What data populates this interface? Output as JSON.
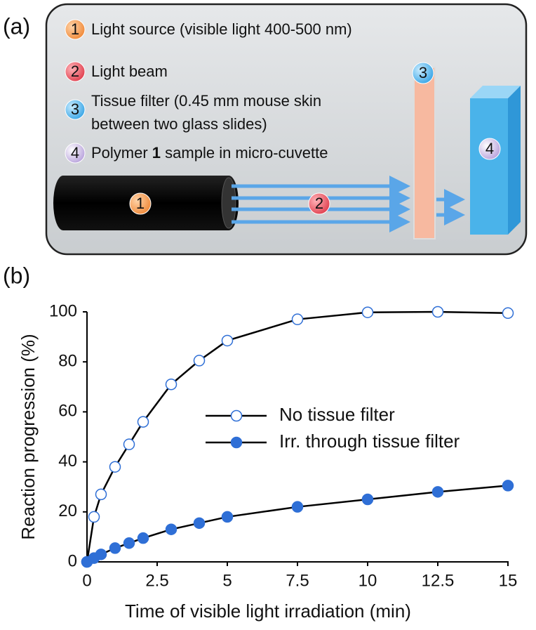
{
  "diagram": {
    "panel_label": "(a)",
    "items": [
      {
        "number": "1",
        "text": "Light source (visible light 400-500 nm)"
      },
      {
        "number": "2",
        "text": "Light beam"
      },
      {
        "number": "3",
        "lines": [
          "Tissue filter (0.45 mm mouse skin",
          "between two glass slides)"
        ]
      },
      {
        "number": "4",
        "text_before": "Polymer ",
        "bold": "1",
        "text_after": " sample in micro-cuvette"
      }
    ]
  },
  "chart_data": {
    "type": "line",
    "panel_label": "(b)",
    "x_label": "Time of visible light irradiation (min)",
    "y_label": "Reaction progression (%)",
    "x": [
      0,
      0.25,
      0.5,
      1,
      1.5,
      2,
      3,
      4,
      5,
      7.5,
      10,
      12.5,
      15
    ],
    "series": [
      {
        "name": "No tissue filter",
        "color": "#2f6fd6",
        "marker": "open",
        "values": [
          0,
          18,
          27,
          38,
          47,
          56,
          71,
          80.5,
          88.5,
          97,
          99.8,
          100,
          99.5
        ]
      },
      {
        "name": "Irr. through tissue filter",
        "color": "#2f6fd6",
        "marker": "filled",
        "values": [
          0,
          1.5,
          3,
          5.5,
          7.5,
          9.5,
          13,
          15.5,
          18,
          22,
          25,
          28,
          30.5
        ]
      }
    ],
    "xlim": [
      0,
      15
    ],
    "xticks": [
      0,
      2.5,
      5,
      7.5,
      10,
      12.5,
      15
    ],
    "ylim": [
      0,
      100
    ],
    "yticks": [
      0,
      20,
      40,
      60,
      80,
      100
    ]
  }
}
